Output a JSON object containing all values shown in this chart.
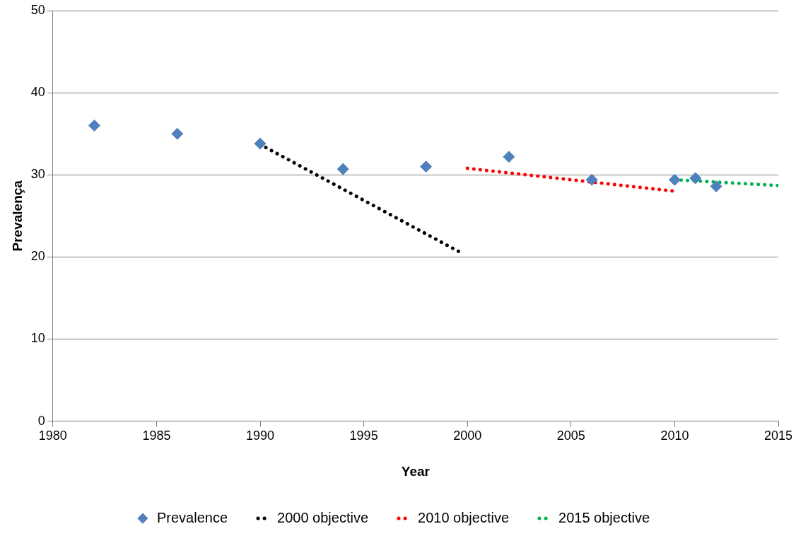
{
  "chart_data": {
    "type": "scatter",
    "xlabel": "Year",
    "ylabel": "Prevalença",
    "xlim": [
      1980,
      2015
    ],
    "xticks": [
      1980,
      1985,
      1990,
      1995,
      2000,
      2005,
      2010,
      2015
    ],
    "ylim": [
      0,
      50
    ],
    "yticks": [
      0,
      10,
      20,
      30,
      40,
      50
    ],
    "grid": "y",
    "legend": "bottom",
    "series": [
      {
        "name": "Prevalence",
        "type": "scatter",
        "marker": "diamond",
        "color": "#4f81bd",
        "x": [
          1982,
          1986,
          1990,
          1994,
          1998,
          2002,
          2006,
          2010,
          2011,
          2012
        ],
        "values": [
          36,
          35,
          33.8,
          30.7,
          31,
          32.2,
          29.4,
          29.4,
          29.6,
          28.6
        ]
      },
      {
        "name": "2000 objective",
        "type": "line",
        "line_style": "dotted",
        "marker": "none",
        "color": "#000000",
        "x": [
          1990,
          1999.7
        ],
        "values": [
          33.7,
          20.5
        ]
      },
      {
        "name": "2010 objective",
        "type": "line",
        "line_style": "dotted",
        "marker": "none",
        "color": "#ff0000",
        "x": [
          2000,
          2010
        ],
        "values": [
          30.8,
          28.0
        ]
      },
      {
        "name": "2015 objective",
        "type": "line",
        "line_style": "dotted",
        "marker": "none",
        "color": "#00b050",
        "x": [
          2010,
          2015
        ],
        "values": [
          29.4,
          28.7
        ]
      }
    ]
  }
}
